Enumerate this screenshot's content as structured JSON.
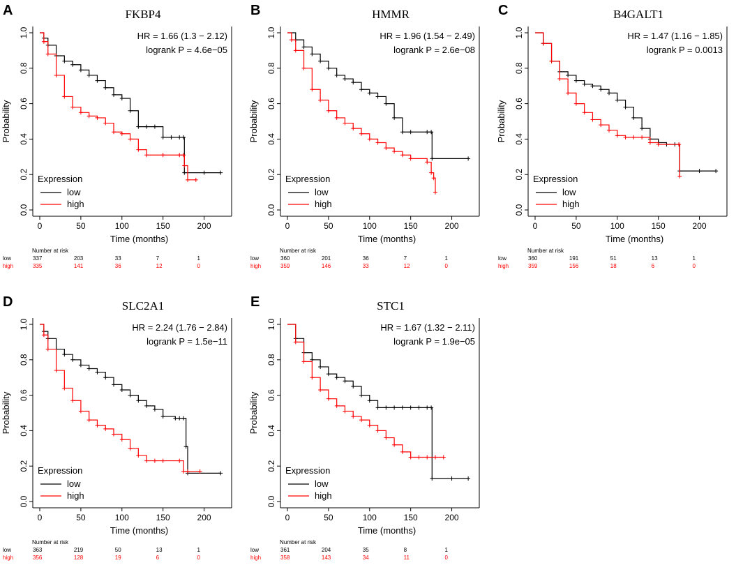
{
  "figure": {
    "axis_y_label": "Probability",
    "axis_x_label": "Time (months)",
    "legend_title": "Expression",
    "risk_title": "Number at risk",
    "colors": {
      "low": "#000000",
      "high": "#ff0000"
    }
  },
  "chart_data": [
    {
      "panel": "A",
      "type": "line",
      "title": "FKBP4",
      "xlabel": "Time (months)",
      "ylabel": "Probability",
      "xlim": [
        0,
        225
      ],
      "ylim": [
        0,
        1
      ],
      "x_ticks": [
        0,
        50,
        100,
        150,
        200
      ],
      "y_ticks": [
        "0.0",
        "0.2",
        "0.4",
        "0.6",
        "0.8",
        "1.0"
      ],
      "hr": "HR = 1.66 (1.3 − 2.12)",
      "logrank": "logrank P = 4.6e−05",
      "legend": [
        "low",
        "high"
      ],
      "series": [
        {
          "name": "low",
          "x": [
            0,
            5,
            10,
            20,
            30,
            40,
            50,
            60,
            70,
            80,
            90,
            100,
            110,
            120,
            130,
            140,
            150,
            160,
            170,
            175,
            176,
            200,
            220
          ],
          "y": [
            1.0,
            0.97,
            0.93,
            0.87,
            0.84,
            0.82,
            0.79,
            0.76,
            0.73,
            0.69,
            0.65,
            0.63,
            0.56,
            0.47,
            0.47,
            0.47,
            0.41,
            0.41,
            0.41,
            0.41,
            0.21,
            0.21,
            0.21
          ]
        },
        {
          "name": "high",
          "x": [
            0,
            5,
            10,
            20,
            30,
            40,
            50,
            60,
            70,
            80,
            90,
            100,
            110,
            120,
            130,
            150,
            170,
            175,
            176,
            180,
            190
          ],
          "y": [
            1.0,
            0.95,
            0.88,
            0.76,
            0.64,
            0.58,
            0.55,
            0.53,
            0.52,
            0.49,
            0.44,
            0.43,
            0.4,
            0.34,
            0.31,
            0.31,
            0.31,
            0.31,
            0.25,
            0.17,
            0.17
          ]
        }
      ],
      "risk_times": [
        0,
        50,
        100,
        150,
        200
      ],
      "risk": {
        "low": [
          "337",
          "203",
          "33",
          "7",
          "1"
        ],
        "high": [
          "335",
          "141",
          "36",
          "12",
          "0"
        ]
      }
    },
    {
      "panel": "B",
      "type": "line",
      "title": "HMMR",
      "xlabel": "Time (months)",
      "ylabel": "Probability",
      "xlim": [
        0,
        225
      ],
      "ylim": [
        0,
        1
      ],
      "x_ticks": [
        0,
        50,
        100,
        150,
        200
      ],
      "y_ticks": [
        "0.0",
        "0.2",
        "0.4",
        "0.6",
        "0.8",
        "1.0"
      ],
      "hr": "HR = 1.96 (1.54 − 2.49)",
      "logrank": "logrank P = 2.6e−08",
      "legend": [
        "low",
        "high"
      ],
      "series": [
        {
          "name": "low",
          "x": [
            0,
            10,
            20,
            30,
            40,
            50,
            60,
            70,
            80,
            90,
            100,
            110,
            120,
            130,
            140,
            150,
            170,
            175,
            176,
            220
          ],
          "y": [
            1.0,
            0.96,
            0.92,
            0.88,
            0.84,
            0.8,
            0.76,
            0.74,
            0.72,
            0.68,
            0.66,
            0.64,
            0.6,
            0.52,
            0.44,
            0.44,
            0.44,
            0.44,
            0.29,
            0.29
          ]
        },
        {
          "name": "high",
          "x": [
            0,
            5,
            10,
            20,
            30,
            40,
            50,
            60,
            70,
            80,
            90,
            100,
            110,
            120,
            130,
            140,
            150,
            170,
            175,
            178,
            180
          ],
          "y": [
            1.0,
            0.96,
            0.9,
            0.8,
            0.68,
            0.62,
            0.56,
            0.52,
            0.49,
            0.46,
            0.43,
            0.4,
            0.38,
            0.35,
            0.33,
            0.31,
            0.29,
            0.27,
            0.21,
            0.18,
            0.1
          ]
        }
      ],
      "risk_times": [
        0,
        50,
        100,
        150,
        200
      ],
      "risk": {
        "low": [
          "360",
          "201",
          "36",
          "7",
          "1"
        ],
        "high": [
          "359",
          "146",
          "33",
          "12",
          "0"
        ]
      }
    },
    {
      "panel": "C",
      "type": "line",
      "title": "B4GALT1",
      "xlabel": "Time (months)",
      "ylabel": "Probability",
      "xlim": [
        0,
        225
      ],
      "ylim": [
        0,
        1
      ],
      "x_ticks": [
        0,
        50,
        100,
        150,
        200
      ],
      "y_ticks": [
        "0.0",
        "0.2",
        "0.4",
        "0.6",
        "0.8",
        "1.0"
      ],
      "hr": "HR = 1.47 (1.16 − 1.85)",
      "logrank": "logrank P = 0.0013",
      "legend": [
        "low",
        "high"
      ],
      "series": [
        {
          "name": "low",
          "x": [
            0,
            10,
            20,
            30,
            40,
            50,
            60,
            70,
            80,
            90,
            100,
            110,
            120,
            130,
            140,
            150,
            160,
            170,
            175,
            176,
            200,
            220
          ],
          "y": [
            1.0,
            0.94,
            0.84,
            0.78,
            0.76,
            0.73,
            0.71,
            0.7,
            0.68,
            0.66,
            0.62,
            0.58,
            0.52,
            0.46,
            0.4,
            0.38,
            0.37,
            0.37,
            0.37,
            0.22,
            0.22,
            0.22
          ]
        },
        {
          "name": "high",
          "x": [
            0,
            10,
            20,
            30,
            40,
            50,
            60,
            70,
            80,
            90,
            100,
            110,
            120,
            130,
            140,
            150,
            175,
            176
          ],
          "y": [
            1.0,
            0.94,
            0.84,
            0.74,
            0.66,
            0.6,
            0.55,
            0.51,
            0.48,
            0.45,
            0.42,
            0.41,
            0.41,
            0.41,
            0.38,
            0.37,
            0.37,
            0.19
          ]
        }
      ],
      "risk_times": [
        0,
        50,
        100,
        150,
        200
      ],
      "risk": {
        "low": [
          "360",
          "191",
          "51",
          "13",
          "1"
        ],
        "high": [
          "359",
          "156",
          "18",
          "6",
          "0"
        ]
      }
    },
    {
      "panel": "D",
      "type": "line",
      "title": "SLC2A1",
      "xlabel": "Time (months)",
      "ylabel": "Probability",
      "xlim": [
        0,
        225
      ],
      "ylim": [
        0,
        1
      ],
      "x_ticks": [
        0,
        50,
        100,
        150,
        200
      ],
      "y_ticks": [
        "0.0",
        "0.2",
        "0.4",
        "0.6",
        "0.8",
        "1.0"
      ],
      "hr": "HR = 2.24 (1.76 − 2.84)",
      "logrank": "logrank P = 1.5e−11",
      "legend": [
        "low",
        "high"
      ],
      "series": [
        {
          "name": "low",
          "x": [
            0,
            5,
            10,
            20,
            30,
            40,
            50,
            60,
            70,
            80,
            90,
            100,
            110,
            120,
            130,
            140,
            150,
            165,
            170,
            175,
            178,
            180,
            220
          ],
          "y": [
            1.0,
            0.96,
            0.92,
            0.86,
            0.83,
            0.8,
            0.77,
            0.75,
            0.73,
            0.7,
            0.66,
            0.63,
            0.6,
            0.57,
            0.54,
            0.52,
            0.48,
            0.47,
            0.47,
            0.47,
            0.31,
            0.16,
            0.16
          ]
        },
        {
          "name": "high",
          "x": [
            0,
            5,
            10,
            20,
            30,
            40,
            50,
            60,
            70,
            80,
            90,
            100,
            110,
            120,
            130,
            140,
            150,
            170,
            175,
            180,
            195
          ],
          "y": [
            1.0,
            0.94,
            0.86,
            0.74,
            0.64,
            0.57,
            0.51,
            0.46,
            0.43,
            0.41,
            0.38,
            0.35,
            0.3,
            0.26,
            0.23,
            0.23,
            0.23,
            0.23,
            0.17,
            0.17,
            0.17
          ]
        }
      ],
      "risk_times": [
        0,
        50,
        100,
        150,
        200
      ],
      "risk": {
        "low": [
          "363",
          "219",
          "50",
          "13",
          "1"
        ],
        "high": [
          "356",
          "128",
          "19",
          "6",
          "0"
        ]
      }
    },
    {
      "panel": "E",
      "type": "line",
      "title": "STC1",
      "xlabel": "Time (months)",
      "ylabel": "Probability",
      "xlim": [
        0,
        225
      ],
      "ylim": [
        0,
        1
      ],
      "x_ticks": [
        0,
        50,
        100,
        150,
        200
      ],
      "y_ticks": [
        "0.0",
        "0.2",
        "0.4",
        "0.6",
        "0.8",
        "1.0"
      ],
      "hr": "HR = 1.67 (1.32 − 2.11)",
      "logrank": "logrank P = 1.9e−05",
      "legend": [
        "low",
        "high"
      ],
      "series": [
        {
          "name": "low",
          "x": [
            0,
            10,
            20,
            30,
            40,
            50,
            60,
            70,
            80,
            90,
            100,
            110,
            120,
            130,
            140,
            150,
            160,
            170,
            175,
            176,
            200,
            220
          ],
          "y": [
            1.0,
            0.92,
            0.84,
            0.8,
            0.76,
            0.72,
            0.7,
            0.68,
            0.65,
            0.6,
            0.57,
            0.53,
            0.53,
            0.53,
            0.53,
            0.53,
            0.53,
            0.53,
            0.53,
            0.13,
            0.13,
            0.13
          ]
        },
        {
          "name": "high",
          "x": [
            0,
            10,
            20,
            30,
            40,
            50,
            60,
            70,
            80,
            90,
            100,
            110,
            120,
            130,
            140,
            150,
            160,
            170,
            180,
            190
          ],
          "y": [
            1.0,
            0.9,
            0.79,
            0.7,
            0.63,
            0.58,
            0.54,
            0.51,
            0.48,
            0.46,
            0.43,
            0.4,
            0.36,
            0.32,
            0.28,
            0.25,
            0.25,
            0.25,
            0.25,
            0.25
          ]
        }
      ],
      "risk_times": [
        0,
        50,
        100,
        150,
        200
      ],
      "risk": {
        "low": [
          "361",
          "204",
          "35",
          "8",
          "1"
        ],
        "high": [
          "358",
          "143",
          "34",
          "11",
          "0"
        ]
      }
    }
  ]
}
